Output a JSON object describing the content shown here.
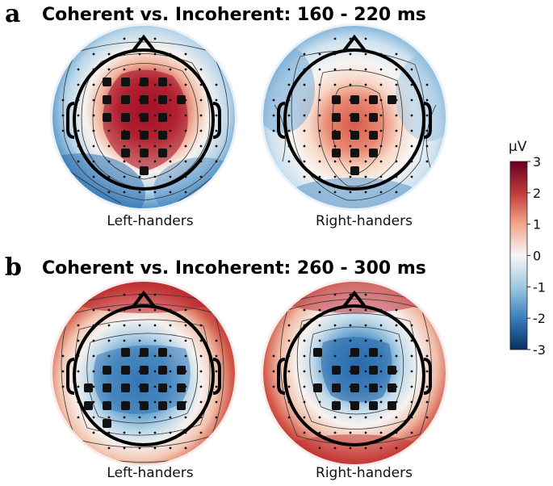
{
  "panels": [
    {
      "letter": "a",
      "title": "Coherent vs. Incoherent: 160 - 220 ms",
      "maps": [
        {
          "label": "Left-handers"
        },
        {
          "label": "Right-handers"
        }
      ]
    },
    {
      "letter": "b",
      "title": "Coherent vs. Incoherent: 260 - 300 ms",
      "maps": [
        {
          "label": "Left-handers"
        },
        {
          "label": "Right-handers"
        }
      ]
    }
  ],
  "colorbar": {
    "unit": "µV",
    "ticks": [
      "3",
      "2",
      "1",
      "0",
      "-1",
      "-2",
      "-3"
    ],
    "colors": {
      "max": "#8b0a1f",
      "positive": "#d6604d",
      "zero": "#f7f7f7",
      "negative": "#4393c3",
      "min": "#08306b"
    }
  }
}
